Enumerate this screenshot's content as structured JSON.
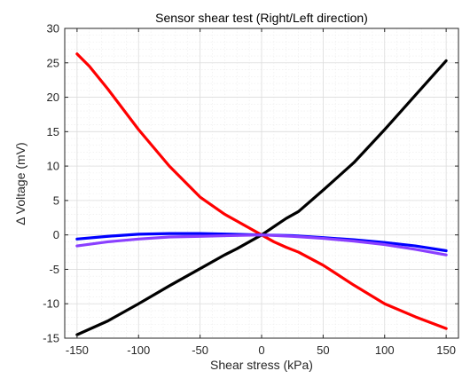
{
  "chart_data": {
    "type": "line",
    "title": "Sensor shear test (Right/Left direction)",
    "xlabel": "Shear stress (kPa)",
    "ylabel": "Δ Voltage (mV)",
    "xlim": [
      -160,
      160
    ],
    "ylim": [
      -15,
      30
    ],
    "xticks": [
      -150,
      -100,
      -50,
      0,
      50,
      100,
      150
    ],
    "yticks": [
      -15,
      -10,
      -5,
      0,
      5,
      10,
      15,
      20,
      25,
      30
    ],
    "grid": "major and minor",
    "legend": "none",
    "series": [
      {
        "color": "#ff0000",
        "x": [
          -150,
          -140,
          -125,
          -100,
          -75,
          -50,
          -30,
          -20,
          -10,
          0,
          10,
          20,
          30,
          50,
          75,
          100,
          125,
          150
        ],
        "y": [
          26.3,
          24.5,
          21.2,
          15.3,
          10.0,
          5.5,
          3.0,
          2.0,
          1.0,
          0.0,
          -1.0,
          -1.8,
          -2.5,
          -4.4,
          -7.3,
          -10.0,
          -11.9,
          -13.6
        ]
      },
      {
        "color": "#000000",
        "x": [
          -150,
          -125,
          -100,
          -75,
          -50,
          -30,
          -20,
          -10,
          0,
          10,
          20,
          30,
          50,
          75,
          100,
          125,
          150
        ],
        "y": [
          -14.5,
          -12.5,
          -10.0,
          -7.4,
          -4.9,
          -2.9,
          -2.0,
          -1.0,
          0.0,
          1.2,
          2.4,
          3.4,
          6.5,
          10.5,
          15.3,
          20.3,
          25.3
        ]
      },
      {
        "color": "#0000ff",
        "x": [
          -150,
          -125,
          -100,
          -75,
          -50,
          -25,
          0,
          25,
          50,
          75,
          100,
          125,
          150
        ],
        "y": [
          -0.6,
          -0.2,
          0.1,
          0.2,
          0.2,
          0.1,
          0.0,
          -0.1,
          -0.4,
          -0.7,
          -1.1,
          -1.6,
          -2.3
        ]
      },
      {
        "color": "#8a3fff",
        "x": [
          -150,
          -125,
          -100,
          -75,
          -50,
          -25,
          0,
          25,
          50,
          75,
          100,
          125,
          150
        ],
        "y": [
          -1.6,
          -1.0,
          -0.6,
          -0.3,
          -0.2,
          -0.1,
          0.0,
          -0.2,
          -0.5,
          -0.9,
          -1.4,
          -2.1,
          -2.9
        ]
      }
    ]
  }
}
